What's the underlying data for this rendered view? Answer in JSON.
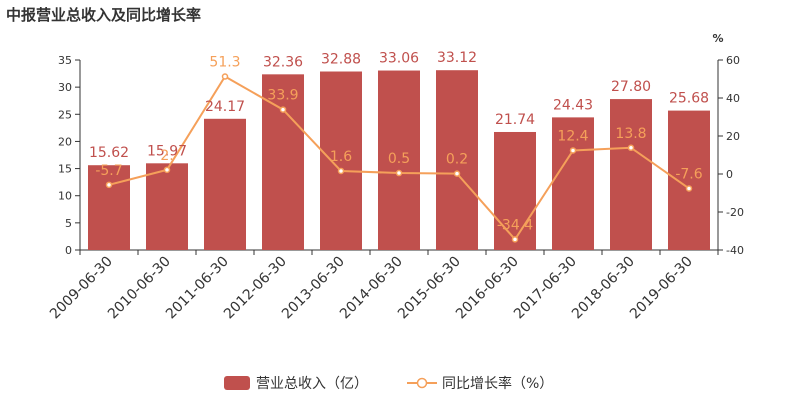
{
  "title": "中报营业总收入及同比增长率",
  "colors": {
    "bar": "#c0504d",
    "line": "#f5a05a",
    "axis": "#333333"
  },
  "chart_data": {
    "type": "bar",
    "categories": [
      "2009-06-30",
      "2010-06-30",
      "2011-06-30",
      "2012-06-30",
      "2013-06-30",
      "2014-06-30",
      "2015-06-30",
      "2016-06-30",
      "2017-06-30",
      "2018-06-30",
      "2019-06-30"
    ],
    "series": [
      {
        "name": "营业总收入（亿）",
        "type": "bar",
        "axis": "left",
        "values": [
          15.62,
          15.97,
          24.17,
          32.36,
          32.88,
          33.06,
          33.12,
          21.74,
          24.43,
          27.8,
          25.68
        ],
        "labels": [
          "15.62",
          "15.97",
          "24.17",
          "32.36",
          "32.88",
          "33.06",
          "33.12",
          "21.74",
          "24.43",
          "27.80",
          "25.68"
        ]
      },
      {
        "name": "同比增长率（%）",
        "type": "line",
        "axis": "right",
        "values": [
          -5.7,
          2.2,
          51.3,
          33.9,
          1.6,
          0.5,
          0.2,
          -34.4,
          12.4,
          13.8,
          -7.6
        ],
        "labels": [
          "-5.7",
          "2.",
          "51.3",
          "33.9",
          "1.6",
          "0.5",
          "0.2",
          "-34.4",
          "12.4",
          "13.8",
          "-7.6"
        ]
      }
    ],
    "y_left": {
      "min": 0,
      "max": 35,
      "ticks": [
        "0",
        "5",
        "10",
        "15",
        "20",
        "25",
        "30",
        "35"
      ]
    },
    "y_right": {
      "min": -40,
      "max": 60,
      "unit": "%",
      "ticks": [
        "-40",
        "-20",
        "0",
        "20",
        "40",
        "60"
      ]
    },
    "legend_position": "bottom-center",
    "grid": false
  }
}
